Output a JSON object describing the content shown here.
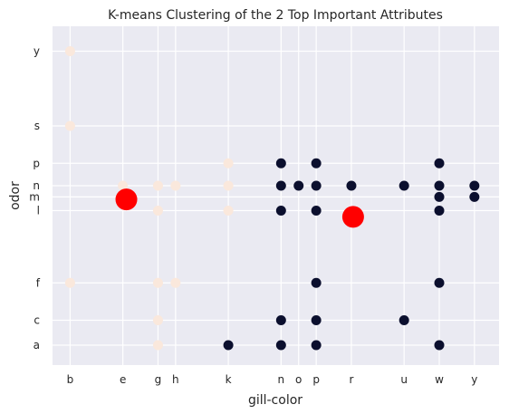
{
  "chart_data": {
    "type": "scatter",
    "title": "K-means Clustering of the 2 Top Important Attributes",
    "xlabel": "gill-color",
    "ylabel": "odor",
    "x_ticks": [
      "b",
      "e",
      "g",
      "h",
      "k",
      "n",
      "o",
      "p",
      "r",
      "u",
      "w",
      "y"
    ],
    "y_ticks": [
      "a",
      "c",
      "f",
      "l",
      "m",
      "n",
      "p",
      "s",
      "y"
    ],
    "x_positions": {
      "b": 0,
      "e": 1.5,
      "g": 2.5,
      "h": 3,
      "k": 4.5,
      "n": 6,
      "o": 6.5,
      "p": 7,
      "r": 8,
      "u": 9.5,
      "w": 10.5,
      "y": 11.5
    },
    "y_positions": {
      "a": 0,
      "c": 1,
      "f": 2.5,
      "l": 5.4,
      "m": 5.95,
      "n": 6.4,
      "p": 7.3,
      "s": 8.8,
      "y": 11.8
    },
    "xlim": [
      -0.5,
      12.2
    ],
    "ylim": [
      -0.8,
      12.8
    ],
    "grid": true,
    "series": [
      {
        "color": "#fae8dc",
        "points": [
          [
            "b",
            "y"
          ],
          [
            "b",
            "s"
          ],
          [
            "b",
            "f"
          ],
          [
            "e",
            "n"
          ],
          [
            "g",
            "n"
          ],
          [
            "g",
            "l"
          ],
          [
            "g",
            "f"
          ],
          [
            "g",
            "c"
          ],
          [
            "g",
            "a"
          ],
          [
            "h",
            "n"
          ],
          [
            "h",
            "f"
          ],
          [
            "k",
            "p"
          ],
          [
            "k",
            "n"
          ],
          [
            "k",
            "l"
          ]
        ]
      },
      {
        "color": "#0b0f2e",
        "points": [
          [
            "k",
            "a"
          ],
          [
            "n",
            "p"
          ],
          [
            "n",
            "n"
          ],
          [
            "n",
            "l"
          ],
          [
            "n",
            "c"
          ],
          [
            "n",
            "a"
          ],
          [
            "o",
            "n"
          ],
          [
            "p",
            "p"
          ],
          [
            "p",
            "n"
          ],
          [
            "p",
            "l"
          ],
          [
            "p",
            "f"
          ],
          [
            "p",
            "c"
          ],
          [
            "p",
            "a"
          ],
          [
            "r",
            "n"
          ],
          [
            "u",
            "n"
          ],
          [
            "u",
            "c"
          ],
          [
            "w",
            "p"
          ],
          [
            "w",
            "n"
          ],
          [
            "w",
            "m"
          ],
          [
            "w",
            "l"
          ],
          [
            "w",
            "f"
          ],
          [
            "w",
            "a"
          ],
          [
            "y",
            "n"
          ],
          [
            "y",
            "m"
          ]
        ]
      }
    ],
    "centroids": {
      "color": "#ff0000",
      "points": [
        [
          1.6,
          5.85
        ],
        [
          8.05,
          5.15
        ]
      ]
    }
  }
}
